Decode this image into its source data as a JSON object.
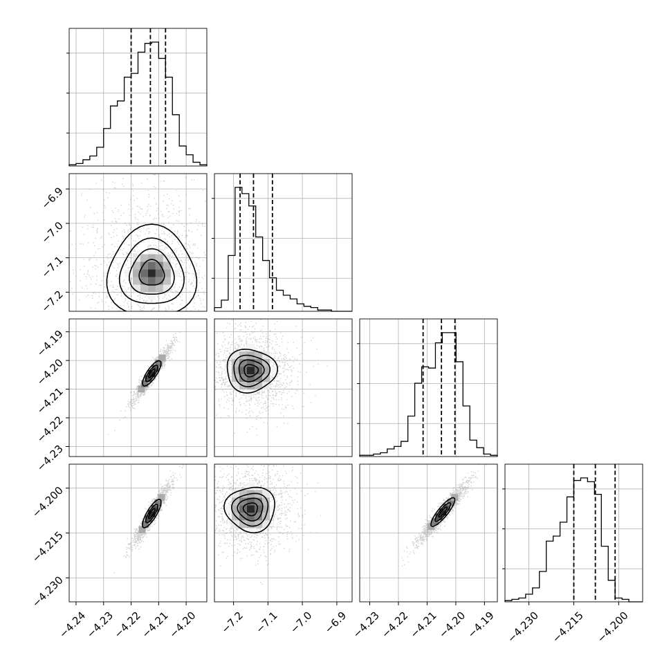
{
  "chart_data": {
    "type": "corner",
    "parameters": [
      {
        "name": "",
        "range": [
          -4.2425,
          -4.1925
        ],
        "ticks": [
          -4.24,
          -4.23,
          -4.22,
          -4.21,
          -4.2
        ],
        "tick_labels": [
          "−4.24",
          "−4.23",
          "−4.22",
          "−4.21",
          "−4.20"
        ],
        "quantiles": [
          -4.22,
          -4.213,
          -4.2075
        ],
        "histogram_counts": [
          1,
          2,
          5,
          8,
          15,
          30,
          48,
          52,
          71,
          74,
          91,
          98,
          99,
          86,
          71,
          41,
          16,
          9,
          3,
          1
        ]
      },
      {
        "name": "",
        "range": [
          -7.2555,
          -6.8555
        ],
        "ticks": [
          -7.2,
          -7.1,
          -7.0,
          -6.9
        ],
        "tick_labels": [
          "−7.2",
          "−7.1",
          "−7.0",
          "−6.9"
        ],
        "quantiles": [
          -7.181,
          -7.142,
          -7.087
        ],
        "histogram_counts": [
          3,
          9,
          45,
          100,
          95,
          85,
          60,
          41,
          27,
          17,
          13,
          10,
          6,
          4,
          3,
          1,
          1,
          0,
          0,
          0
        ]
      },
      {
        "name": "",
        "range": [
          -4.2335,
          -4.1855
        ],
        "ticks": [
          -4.23,
          -4.22,
          -4.21,
          -4.2,
          -4.19
        ],
        "tick_labels": [
          "−4.23",
          "−4.22",
          "−4.21",
          "−4.20",
          "−4.19"
        ],
        "quantiles": [
          -4.2114,
          -4.205,
          -4.2003
        ],
        "histogram_counts": [
          1,
          1,
          2,
          3,
          6,
          8,
          12,
          32,
          58,
          71,
          70,
          90,
          98,
          98,
          75,
          40,
          13,
          7,
          2,
          1
        ]
      },
      {
        "name": "",
        "range": [
          -4.238,
          -4.192
        ],
        "ticks": [
          -4.23,
          -4.215,
          -4.2
        ],
        "tick_labels": [
          "−4.230",
          "−4.215",
          "−4.200"
        ],
        "quantiles": [
          -4.215,
          -4.2078,
          -4.2012
        ],
        "histogram_counts": [
          1,
          2,
          3,
          6,
          11,
          24,
          48,
          52,
          63,
          83,
          96,
          98,
          95,
          85,
          44,
          17,
          3,
          2,
          0,
          0
        ]
      }
    ],
    "pairs": [
      {
        "x": 0,
        "y": 1,
        "center": [
          -4.2125,
          -7.145
        ],
        "contour_sizes": [
          0.0165,
          0.15
        ],
        "correlation": 0
      },
      {
        "x": 0,
        "y": 2,
        "center": [
          -4.2125,
          -4.2045
        ],
        "contour_sizes": [
          0.0055,
          0.0078
        ],
        "correlation": 0.995
      },
      {
        "x": 1,
        "y": 2,
        "center": [
          -7.15,
          -4.2035
        ],
        "contour_sizes": [
          0.075,
          0.0085
        ],
        "correlation": 0
      },
      {
        "x": 0,
        "y": 3,
        "center": [
          -4.2125,
          -4.2085
        ],
        "contour_sizes": [
          0.0055,
          0.0085
        ],
        "correlation": 0.995
      },
      {
        "x": 1,
        "y": 3,
        "center": [
          -7.15,
          -4.207
        ],
        "contour_sizes": [
          0.075,
          0.0085
        ],
        "correlation": 0
      },
      {
        "x": 2,
        "y": 3,
        "center": [
          -4.2045,
          -4.208
        ],
        "contour_sizes": [
          0.0072,
          0.0085
        ],
        "correlation": 0.995
      }
    ],
    "grid": true,
    "contour_levels": 4
  }
}
